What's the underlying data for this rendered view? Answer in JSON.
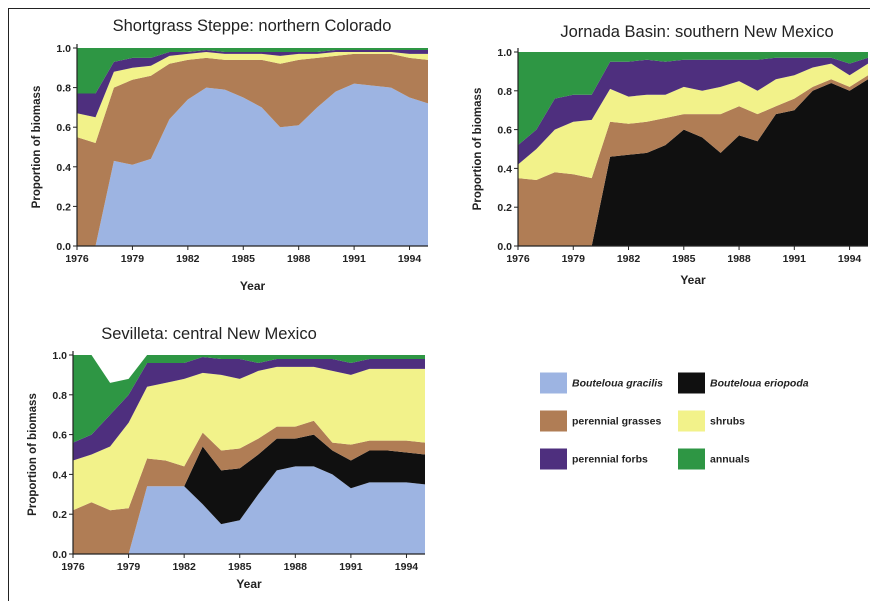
{
  "figure": {
    "colors": {
      "Bouteloua gracilis": "#9db4e2",
      "Bouteloua eriopoda": "#101010",
      "perennial grasses": "#b07d55",
      "shrubs": "#f2f28a",
      "perennial forbs": "#4e2f7e",
      "annuals": "#2e9644"
    },
    "legend": {
      "placement": "bottom-right",
      "items": [
        {
          "label": "Bouteloua gracilis",
          "italic": true
        },
        {
          "label": "Bouteloua eriopoda",
          "italic": true
        },
        {
          "label": "perennial grasses",
          "italic": false
        },
        {
          "label": "shrubs",
          "italic": false
        },
        {
          "label": "perennial forbs",
          "italic": false
        },
        {
          "label": "annuals",
          "italic": false
        }
      ]
    }
  },
  "chart_data": [
    {
      "type": "area",
      "stacked": true,
      "title": "Shortgrass Steppe: northern Colorado",
      "xlabel": "Year",
      "ylabel": "Proportion of biomass",
      "xlim": [
        1976,
        1995
      ],
      "ylim": [
        0,
        1
      ],
      "xticks": [
        "1976",
        "1979",
        "1982",
        "1985",
        "1988",
        "1991",
        "1994"
      ],
      "yticks": [
        "0.0",
        "0.2",
        "0.4",
        "0.6",
        "0.8",
        "1.0"
      ],
      "x": [
        1976,
        1977,
        1978,
        1979,
        1980,
        1981,
        1982,
        1983,
        1984,
        1985,
        1986,
        1987,
        1988,
        1989,
        1990,
        1991,
        1992,
        1993,
        1994,
        1995
      ],
      "series": [
        {
          "name": "Bouteloua gracilis",
          "values": [
            0,
            0,
            0.43,
            0.41,
            0.44,
            0.64,
            0.74,
            0.8,
            0.79,
            0.75,
            0.7,
            0.6,
            0.61,
            0.7,
            0.78,
            0.82,
            0.81,
            0.8,
            0.75,
            0.72
          ]
        },
        {
          "name": "perennial grasses",
          "values": [
            0.55,
            0.52,
            0.37,
            0.43,
            0.42,
            0.28,
            0.2,
            0.15,
            0.15,
            0.19,
            0.24,
            0.32,
            0.33,
            0.25,
            0.18,
            0.15,
            0.16,
            0.17,
            0.2,
            0.22
          ]
        },
        {
          "name": "shrubs",
          "values": [
            0.12,
            0.13,
            0.08,
            0.06,
            0.05,
            0.04,
            0.03,
            0.03,
            0.03,
            0.03,
            0.03,
            0.04,
            0.03,
            0.02,
            0.02,
            0.01,
            0.01,
            0.01,
            0.02,
            0.03
          ]
        },
        {
          "name": "perennial forbs",
          "values": [
            0.1,
            0.12,
            0.05,
            0.05,
            0.04,
            0.02,
            0.01,
            0.01,
            0.01,
            0.01,
            0.01,
            0.02,
            0.01,
            0.01,
            0.01,
            0.01,
            0.01,
            0.01,
            0.02,
            0.02
          ]
        },
        {
          "name": "annuals",
          "values": [
            0.23,
            0.23,
            0.07,
            0.05,
            0.05,
            0.02,
            0.02,
            0.01,
            0.02,
            0.02,
            0.02,
            0.02,
            0.02,
            0.02,
            0.01,
            0.01,
            0.01,
            0.01,
            0.01,
            0.01
          ]
        }
      ]
    },
    {
      "type": "area",
      "stacked": true,
      "title": "Jornada Basin: southern New Mexico",
      "xlabel": "Year",
      "ylabel": "Proportion of biomass",
      "xlim": [
        1976,
        1995
      ],
      "ylim": [
        0,
        1
      ],
      "xticks": [
        "1976",
        "1979",
        "1982",
        "1985",
        "1988",
        "1991",
        "1994"
      ],
      "yticks": [
        "0.0",
        "0.2",
        "0.4",
        "0.6",
        "0.8",
        "1.0"
      ],
      "x": [
        1976,
        1977,
        1978,
        1979,
        1980,
        1981,
        1982,
        1983,
        1984,
        1985,
        1986,
        1987,
        1988,
        1989,
        1990,
        1991,
        1992,
        1993,
        1994,
        1995
      ],
      "series": [
        {
          "name": "Bouteloua eriopoda",
          "values": [
            0,
            0,
            0,
            0,
            0,
            0.46,
            0.47,
            0.48,
            0.52,
            0.6,
            0.56,
            0.48,
            0.57,
            0.54,
            0.68,
            0.7,
            0.8,
            0.84,
            0.8,
            0.86
          ]
        },
        {
          "name": "perennial grasses",
          "values": [
            0.35,
            0.34,
            0.38,
            0.37,
            0.35,
            0.18,
            0.16,
            0.16,
            0.14,
            0.08,
            0.12,
            0.2,
            0.15,
            0.14,
            0.04,
            0.06,
            0.02,
            0.02,
            0.02,
            0.02
          ]
        },
        {
          "name": "shrubs",
          "values": [
            0.07,
            0.16,
            0.22,
            0.27,
            0.3,
            0.17,
            0.14,
            0.14,
            0.12,
            0.14,
            0.12,
            0.14,
            0.13,
            0.12,
            0.14,
            0.12,
            0.1,
            0.08,
            0.06,
            0.06
          ]
        },
        {
          "name": "perennial forbs",
          "values": [
            0.1,
            0.1,
            0.16,
            0.14,
            0.13,
            0.14,
            0.18,
            0.18,
            0.17,
            0.14,
            0.16,
            0.14,
            0.11,
            0.16,
            0.11,
            0.09,
            0.05,
            0.03,
            0.06,
            0.03
          ]
        },
        {
          "name": "annuals",
          "values": [
            0.48,
            0.4,
            0.24,
            0.22,
            0.22,
            0.05,
            0.05,
            0.04,
            0.05,
            0.04,
            0.04,
            0.04,
            0.04,
            0.04,
            0.03,
            0.03,
            0.03,
            0.03,
            0.06,
            0.03
          ]
        }
      ]
    },
    {
      "type": "area",
      "stacked": true,
      "title": "Sevilleta: central New Mexico",
      "xlabel": "Year",
      "ylabel": "Proportion of biomass",
      "xlim": [
        1976,
        1995
      ],
      "ylim": [
        0,
        1
      ],
      "xticks": [
        "1976",
        "1979",
        "1982",
        "1985",
        "1988",
        "1991",
        "1994"
      ],
      "yticks": [
        "0.0",
        "0.2",
        "0.4",
        "0.6",
        "0.8",
        "1.0"
      ],
      "x": [
        1976,
        1977,
        1978,
        1979,
        1980,
        1981,
        1982,
        1983,
        1984,
        1985,
        1986,
        1987,
        1988,
        1989,
        1990,
        1991,
        1992,
        1993,
        1994,
        1995
      ],
      "series": [
        {
          "name": "Bouteloua gracilis",
          "values": [
            0,
            0,
            0,
            0,
            0.34,
            0.34,
            0.34,
            0.25,
            0.15,
            0.17,
            0.3,
            0.42,
            0.44,
            0.44,
            0.4,
            0.33,
            0.36,
            0.36,
            0.36,
            0.35
          ]
        },
        {
          "name": "Bouteloua eriopoda",
          "values": [
            0,
            0,
            0,
            0,
            0,
            0,
            0,
            0.29,
            0.27,
            0.26,
            0.2,
            0.16,
            0.14,
            0.16,
            0.12,
            0.14,
            0.16,
            0.16,
            0.15,
            0.15
          ]
        },
        {
          "name": "perennial grasses",
          "values": [
            0.22,
            0.26,
            0.22,
            0.23,
            0.14,
            0.13,
            0.1,
            0.07,
            0.1,
            0.1,
            0.08,
            0.06,
            0.06,
            0.07,
            0.04,
            0.08,
            0.05,
            0.05,
            0.06,
            0.06
          ]
        },
        {
          "name": "shrubs",
          "values": [
            0.25,
            0.24,
            0.32,
            0.43,
            0.36,
            0.39,
            0.44,
            0.3,
            0.38,
            0.35,
            0.34,
            0.3,
            0.3,
            0.27,
            0.36,
            0.35,
            0.36,
            0.36,
            0.36,
            0.37
          ]
        },
        {
          "name": "perennial forbs",
          "values": [
            0.09,
            0.1,
            0.16,
            0.14,
            0.12,
            0.1,
            0.08,
            0.08,
            0.08,
            0.1,
            0.04,
            0.04,
            0.04,
            0.04,
            0.06,
            0.06,
            0.05,
            0.05,
            0.05,
            0.05
          ]
        },
        {
          "name": "annuals",
          "values": [
            0.44,
            0.4,
            0.16,
            0.08,
            0.04,
            0.04,
            0.04,
            0.01,
            0.02,
            0.02,
            0.04,
            0.02,
            0.02,
            0.02,
            0.02,
            0.04,
            0.02,
            0.02,
            0.02,
            0.02
          ]
        }
      ]
    }
  ]
}
